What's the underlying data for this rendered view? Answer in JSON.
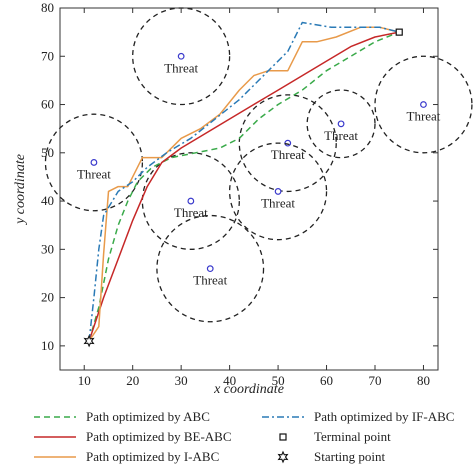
{
  "chart_data": {
    "type": "line",
    "xlabel": "x coordinate",
    "ylabel": "y coordinate",
    "xlim": [
      5,
      83
    ],
    "ylim": [
      5,
      80
    ],
    "x_ticks": [
      10,
      20,
      30,
      40,
      50,
      60,
      70,
      80
    ],
    "y_ticks": [
      10,
      20,
      30,
      40,
      50,
      60,
      70,
      80
    ],
    "grid": false,
    "legend_position": "below",
    "threats": [
      {
        "label": "Threat",
        "center": [
          30,
          70
        ],
        "radius": 10
      },
      {
        "label": "Threat",
        "center": [
          12,
          48
        ],
        "radius": 10
      },
      {
        "label": "Threat",
        "center": [
          32,
          40
        ],
        "radius": 10
      },
      {
        "label": "Threat",
        "center": [
          36,
          26
        ],
        "radius": 11
      },
      {
        "label": "Threat",
        "center": [
          52,
          52
        ],
        "radius": 10
      },
      {
        "label": "Threat",
        "center": [
          50,
          42
        ],
        "radius": 10
      },
      {
        "label": "Threat",
        "center": [
          63,
          56
        ],
        "radius": 7
      },
      {
        "label": "Threat",
        "center": [
          80,
          60
        ],
        "radius": 10
      }
    ],
    "series": [
      {
        "name": "Path optimized by ABC",
        "color": "#3aaa4a",
        "dash": "dashed",
        "points": [
          [
            11,
            11
          ],
          [
            13,
            18
          ],
          [
            15,
            28
          ],
          [
            17,
            35
          ],
          [
            19,
            40
          ],
          [
            21,
            44
          ],
          [
            24,
            47
          ],
          [
            28,
            49
          ],
          [
            33,
            50
          ],
          [
            38,
            51
          ],
          [
            42,
            53
          ],
          [
            46,
            57
          ],
          [
            50,
            60
          ],
          [
            55,
            63
          ],
          [
            60,
            67
          ],
          [
            65,
            70
          ],
          [
            70,
            73
          ],
          [
            75,
            75
          ]
        ]
      },
      {
        "name": "Path optimized by BE-ABC",
        "color": "#c62828",
        "dash": "solid",
        "points": [
          [
            11,
            11
          ],
          [
            14,
            20
          ],
          [
            17,
            28
          ],
          [
            20,
            36
          ],
          [
            23,
            43
          ],
          [
            26,
            48
          ],
          [
            30,
            51
          ],
          [
            35,
            54
          ],
          [
            40,
            57
          ],
          [
            45,
            60
          ],
          [
            50,
            63
          ],
          [
            55,
            66
          ],
          [
            60,
            69
          ],
          [
            65,
            72
          ],
          [
            70,
            74
          ],
          [
            75,
            75
          ]
        ]
      },
      {
        "name": "Path optimized by I-ABC",
        "color": "#e89a4a",
        "dash": "solid",
        "points": [
          [
            11,
            11
          ],
          [
            13,
            14
          ],
          [
            14,
            29
          ],
          [
            15,
            42
          ],
          [
            17,
            43
          ],
          [
            19,
            43
          ],
          [
            22,
            49
          ],
          [
            26,
            49
          ],
          [
            30,
            53
          ],
          [
            34,
            55
          ],
          [
            38,
            58
          ],
          [
            42,
            63
          ],
          [
            45,
            66
          ],
          [
            48,
            67
          ],
          [
            52,
            67
          ],
          [
            55,
            73
          ],
          [
            58,
            73
          ],
          [
            62,
            74
          ],
          [
            67,
            76
          ],
          [
            71,
            76
          ],
          [
            75,
            75
          ]
        ]
      },
      {
        "name": "Path optimized by IF-ABC",
        "color": "#2a7ab6",
        "dash": "dashdot",
        "points": [
          [
            11,
            11
          ],
          [
            12,
            20
          ],
          [
            13,
            30
          ],
          [
            14,
            37
          ],
          [
            17,
            42
          ],
          [
            20,
            44
          ],
          [
            23,
            47
          ],
          [
            27,
            50
          ],
          [
            32,
            53
          ],
          [
            37,
            57
          ],
          [
            42,
            61
          ],
          [
            46,
            65
          ],
          [
            49,
            68
          ],
          [
            52,
            71
          ],
          [
            55,
            77
          ],
          [
            61,
            76
          ],
          [
            67,
            76
          ],
          [
            71,
            76
          ],
          [
            75,
            75
          ]
        ]
      }
    ],
    "terminal_point": {
      "name": "Terminal point",
      "x": 75,
      "y": 75
    },
    "starting_point": {
      "name": "Starting point",
      "x": 11,
      "y": 11
    }
  }
}
